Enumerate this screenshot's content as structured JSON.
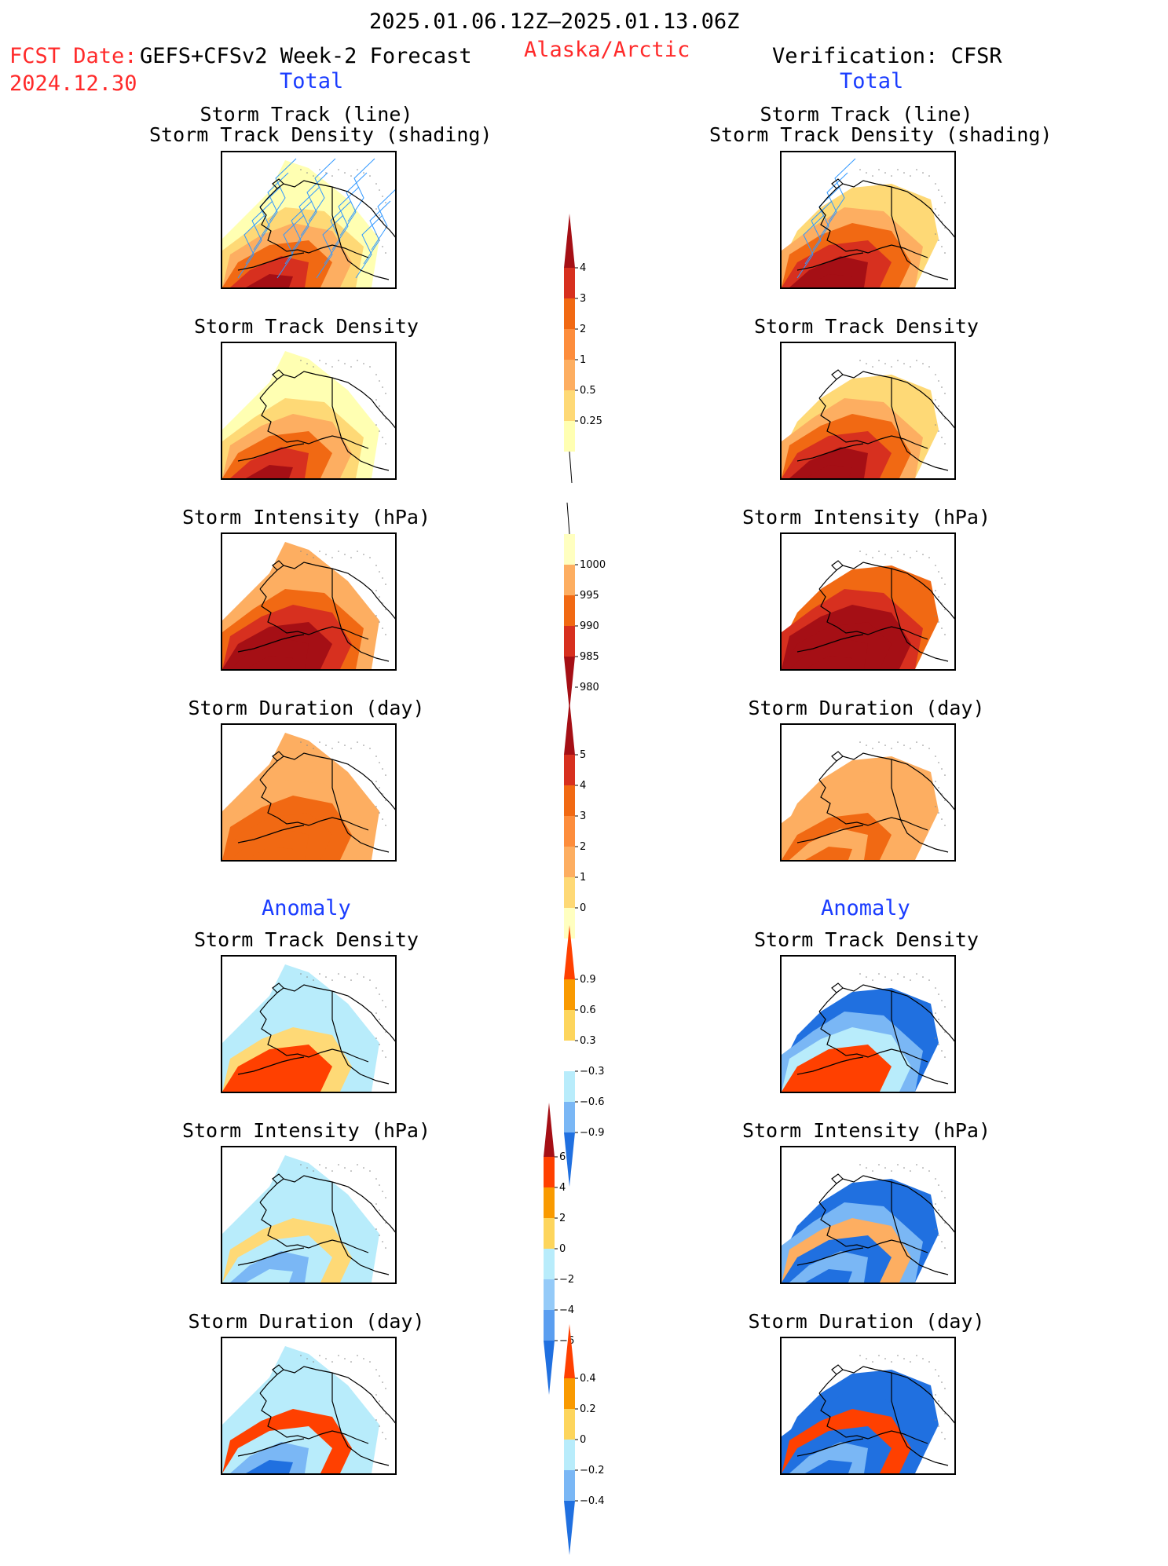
{
  "header": {
    "period": "2025.01.06.12Z–2025.01.13.06Z",
    "fcst_label": "FCST Date:",
    "fcst_model": "GEFS+CFSv2 Week-2 Forecast",
    "fcst_date": "2024.12.30",
    "region": "Alaska/Arctic",
    "verification": "Verification: CFSR",
    "left_total": "Total",
    "right_total": "Total",
    "left_anomaly": "Anomaly",
    "right_anomaly": "Anomaly"
  },
  "panels": {
    "track_title_line1": "Storm Track (line)",
    "track_title_line2": "Storm Track Density (shading)",
    "density": "Storm Track Density",
    "intensity": "Storm Intensity (hPa)",
    "duration": "Storm Duration (day)"
  },
  "colorbars": {
    "density": {
      "ticks": [
        "4",
        "3",
        "2",
        "1",
        "0.5",
        "0.25"
      ],
      "colors": [
        "#a50f15",
        "#d7301f",
        "#f16913",
        "#fd8d3c",
        "#fdae61",
        "#fed976",
        "#ffffb2"
      ]
    },
    "intensity": {
      "ticks": [
        "1000",
        "995",
        "990",
        "985",
        "980"
      ],
      "colors": [
        "#ffffc0",
        "#fdae61",
        "#f16913",
        "#d7301f",
        "#a50f15"
      ]
    },
    "duration": {
      "ticks": [
        "5",
        "4",
        "3",
        "2",
        "1",
        "0"
      ],
      "colors": [
        "#a50f15",
        "#d7301f",
        "#f16913",
        "#fd8d3c",
        "#fdae61",
        "#fed976",
        "#ffffc0"
      ]
    },
    "density_anom": {
      "ticks": [
        "0.9",
        "0.6",
        "0.3",
        "−0.3",
        "−0.6",
        "−0.9"
      ],
      "colors": [
        "#ff4000",
        "#f99a00",
        "#fdd55c",
        "#ffffff",
        "#b8ecfb",
        "#7ab7f5",
        "#2070e0"
      ]
    },
    "intensity_anom": {
      "ticks": [
        "6",
        "4",
        "2",
        "0",
        "−2",
        "−4",
        "−6"
      ],
      "colors": [
        "#a50f15",
        "#ff4000",
        "#f99a00",
        "#fdd55c",
        "#b8ecfb",
        "#94caf8",
        "#5a9ef0",
        "#2070e0"
      ]
    },
    "duration_anom": {
      "ticks": [
        "0.4",
        "0.2",
        "0",
        "−0.2",
        "−0.4"
      ],
      "colors": [
        "#ff4000",
        "#f99a00",
        "#fdd55c",
        "#b8ecfb",
        "#7ab7f5",
        "#2070e0"
      ]
    }
  },
  "colors": {
    "dark_red": "#a50f15",
    "red": "#d7301f",
    "orange": "#f16913",
    "light_orange": "#fdae61",
    "yellow": "#fed976",
    "pale_yellow": "#ffffb2",
    "anom_red": "#ff4000",
    "light_blue": "#b8ecfb",
    "mid_blue": "#7ab7f5",
    "dark_blue": "#2070e0",
    "track_line": "#3399ff"
  }
}
